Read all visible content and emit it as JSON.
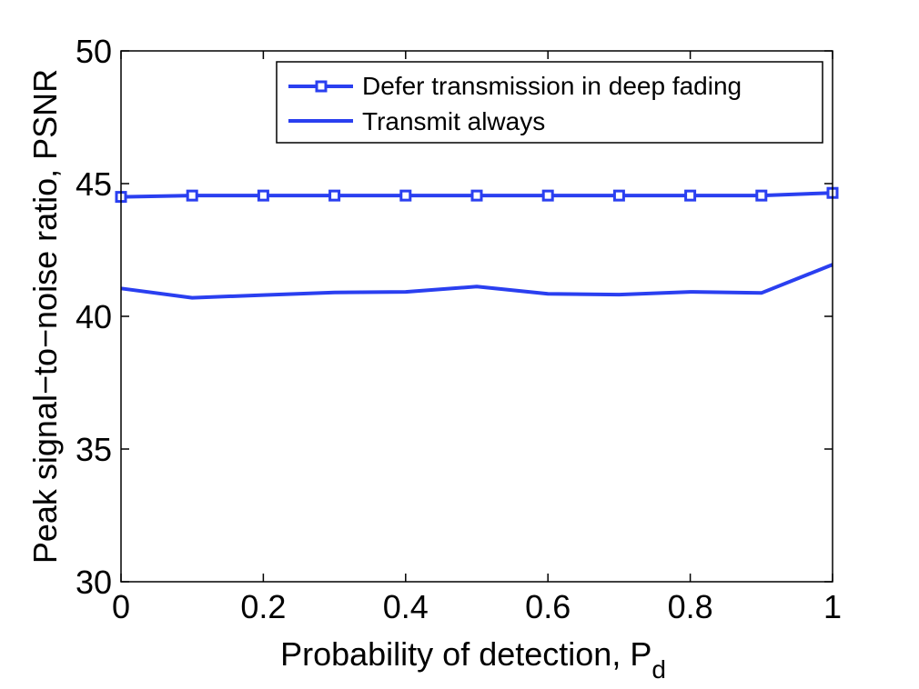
{
  "chart_data": {
    "type": "line",
    "xlabel": "Probability of detection, P",
    "xlabel_subscript": "d",
    "ylabel": "Peak signal−to−noise ratio, PSNR",
    "xlim": [
      0,
      1
    ],
    "ylim": [
      30,
      50
    ],
    "x": [
      0,
      0.1,
      0.2,
      0.3,
      0.4,
      0.5,
      0.6,
      0.7,
      0.8,
      0.9,
      1.0
    ],
    "xticks": [
      0,
      0.2,
      0.4,
      0.6,
      0.8,
      1
    ],
    "xtick_labels": [
      "0",
      "0.2",
      "0.4",
      "0.6",
      "0.8",
      "1"
    ],
    "yticks": [
      30,
      35,
      40,
      45,
      50
    ],
    "ytick_labels": [
      "30",
      "35",
      "40",
      "45",
      "50"
    ],
    "legend_position": "top-right",
    "series": [
      {
        "name": "Defer transmission in deep fading",
        "marker": "square",
        "color": "#2a3ff0",
        "values": [
          44.5,
          44.55,
          44.55,
          44.55,
          44.55,
          44.55,
          44.55,
          44.55,
          44.55,
          44.55,
          44.65
        ]
      },
      {
        "name": "Transmit always",
        "marker": "none",
        "color": "#2a3ff0",
        "values": [
          41.05,
          40.7,
          40.8,
          40.9,
          40.92,
          41.12,
          40.85,
          40.82,
          40.92,
          40.88,
          41.95
        ]
      }
    ]
  }
}
